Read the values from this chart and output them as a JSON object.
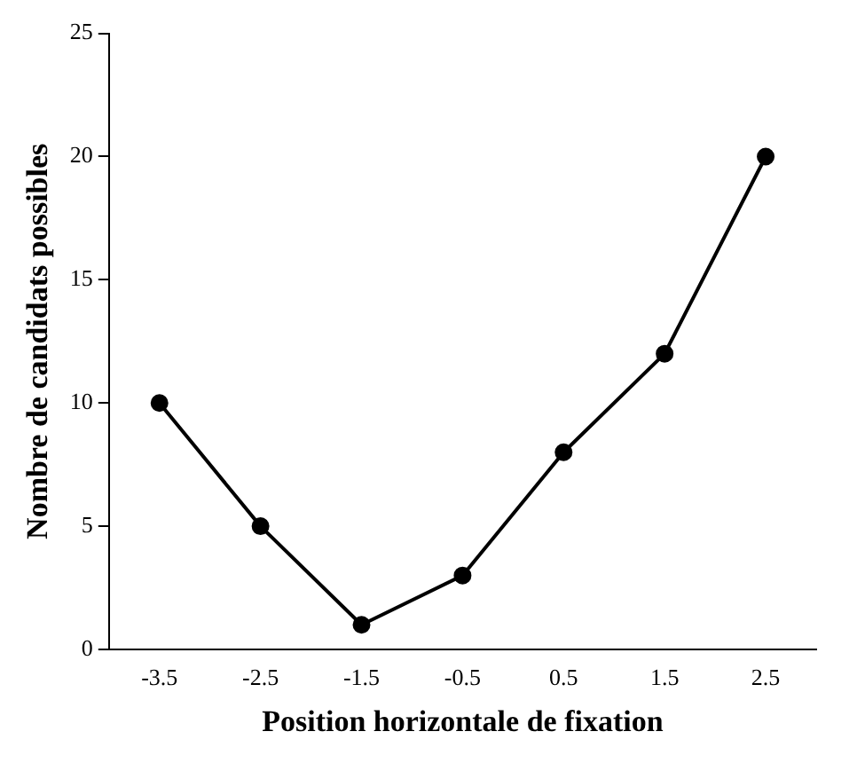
{
  "chart_data": {
    "type": "line",
    "xlabel": "Position horizontale de fixation",
    "ylabel": "Nombre de candidats possibles",
    "categories": [
      "-3.5",
      "-2.5",
      "-1.5",
      "-0.5",
      "0.5",
      "1.5",
      "2.5"
    ],
    "series": [
      {
        "color": "#000000",
        "values": [
          10,
          5,
          1,
          3,
          8,
          12,
          20
        ]
      }
    ],
    "ylim": [
      0,
      25
    ],
    "yticks": [
      0,
      5,
      10,
      15,
      20,
      25
    ],
    "grid": false,
    "legend": false,
    "marker": "circle",
    "line_style": "solid"
  }
}
